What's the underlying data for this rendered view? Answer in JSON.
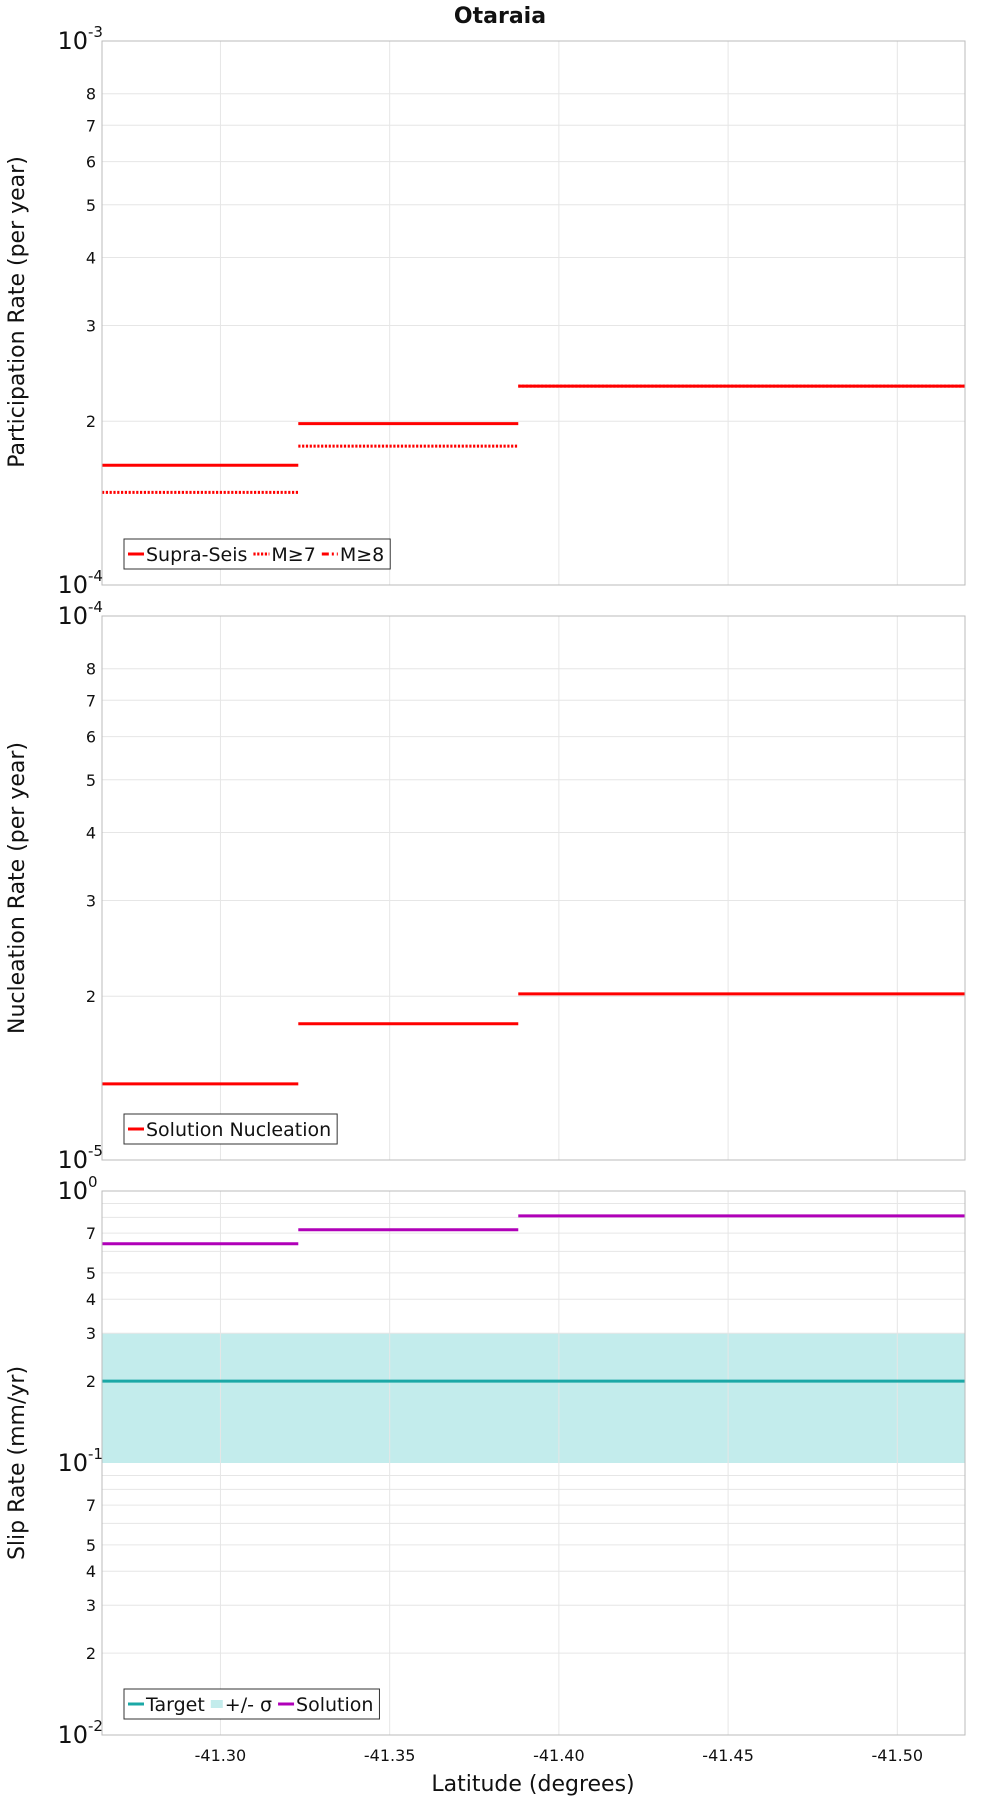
{
  "figure": {
    "title": "Otaraia",
    "xlabel": "Latitude (degrees)"
  },
  "chart_data": [
    {
      "type": "line",
      "ylabel": "Participation Rate (per year)",
      "yscale": "log",
      "ylim": [
        0.0001,
        0.001
      ],
      "xlim": [
        -41.265,
        -41.52
      ],
      "x_tick_values": [
        -41.3,
        -41.35,
        -41.4,
        -41.45,
        -41.5
      ],
      "x_tick_labels": [
        "",
        "",
        "",
        "",
        ""
      ],
      "grid": true,
      "legend_position": "bottom-left",
      "y_major_ticks": [
        {
          "value": 0.001,
          "base": "10",
          "exp": "-3"
        },
        {
          "value": 0.0001,
          "base": "10",
          "exp": "-4"
        }
      ],
      "y_minor_ticks": [
        {
          "value": 0.0002,
          "label": "2"
        },
        {
          "value": 0.0003,
          "label": "3"
        },
        {
          "value": 0.0004,
          "label": "4"
        },
        {
          "value": 0.0005,
          "label": "5"
        },
        {
          "value": 0.0006,
          "label": "6"
        },
        {
          "value": 0.0007,
          "label": "7"
        },
        {
          "value": 0.0008,
          "label": "8"
        }
      ],
      "series": [
        {
          "name": "Supra-Seis",
          "color": "#ff0000",
          "dash": "solid",
          "segments": [
            {
              "x0": -41.265,
              "x1": -41.323,
              "y": 0.000166
            },
            {
              "x0": -41.323,
              "x1": -41.388,
              "y": 0.000198
            },
            {
              "x0": -41.388,
              "x1": -41.52,
              "y": 0.000232
            }
          ]
        },
        {
          "name": "M≥7",
          "color": "#ff0000",
          "dash": "dotted",
          "segments": [
            {
              "x0": -41.265,
              "x1": -41.323,
              "y": 0.000148
            },
            {
              "x0": -41.323,
              "x1": -41.388,
              "y": 0.00018
            },
            {
              "x0": -41.388,
              "x1": -41.52,
              "y": 0.000232
            }
          ]
        },
        {
          "name": "M≥8",
          "color": "#ff0000",
          "dash": "dashdot",
          "segments": []
        }
      ]
    },
    {
      "type": "line",
      "ylabel": "Nucleation Rate (per year)",
      "yscale": "log",
      "ylim": [
        1e-05,
        0.0001
      ],
      "xlim": [
        -41.265,
        -41.52
      ],
      "x_tick_values": [
        -41.3,
        -41.35,
        -41.4,
        -41.45,
        -41.5
      ],
      "x_tick_labels": [
        "",
        "",
        "",
        "",
        ""
      ],
      "grid": true,
      "legend_position": "bottom-left",
      "y_major_ticks": [
        {
          "value": 0.0001,
          "base": "10",
          "exp": "-4"
        },
        {
          "value": 1e-05,
          "base": "10",
          "exp": "-5"
        }
      ],
      "y_minor_ticks": [
        {
          "value": 2e-05,
          "label": "2"
        },
        {
          "value": 3e-05,
          "label": "3"
        },
        {
          "value": 4e-05,
          "label": "4"
        },
        {
          "value": 5e-05,
          "label": "5"
        },
        {
          "value": 6e-05,
          "label": "6"
        },
        {
          "value": 7e-05,
          "label": "7"
        },
        {
          "value": 8e-05,
          "label": "8"
        }
      ],
      "series": [
        {
          "name": "Solution Nucleation",
          "color": "#ff0000",
          "dash": "solid",
          "segments": [
            {
              "x0": -41.265,
              "x1": -41.323,
              "y": 1.38e-05
            },
            {
              "x0": -41.323,
              "x1": -41.388,
              "y": 1.78e-05
            },
            {
              "x0": -41.388,
              "x1": -41.52,
              "y": 2.02e-05
            }
          ]
        }
      ]
    },
    {
      "type": "line",
      "ylabel": "Slip Rate (mm/yr)",
      "yscale": "log",
      "ylim": [
        0.01,
        1
      ],
      "xlim": [
        -41.265,
        -41.52
      ],
      "x_tick_values": [
        -41.3,
        -41.35,
        -41.4,
        -41.45,
        -41.5
      ],
      "x_tick_labels": [
        "-41.30",
        "-41.35",
        "-41.40",
        "-41.45",
        "-41.50"
      ],
      "grid": true,
      "legend_position": "bottom-left",
      "y_major_ticks": [
        {
          "value": 1,
          "base": "10",
          "exp": "0"
        },
        {
          "value": 0.1,
          "base": "10",
          "exp": "-1"
        },
        {
          "value": 0.01,
          "base": "10",
          "exp": "-2"
        }
      ],
      "y_minor_ticks": [
        {
          "value": 0.7,
          "label": "7"
        },
        {
          "value": 0.5,
          "label": "5"
        },
        {
          "value": 0.4,
          "label": "4"
        },
        {
          "value": 0.3,
          "label": "3"
        },
        {
          "value": 0.2,
          "label": "2"
        },
        {
          "value": 0.07,
          "label": "7"
        },
        {
          "value": 0.05,
          "label": "5"
        },
        {
          "value": 0.04,
          "label": "4"
        },
        {
          "value": 0.03,
          "label": "3"
        },
        {
          "value": 0.02,
          "label": "2"
        }
      ],
      "y_grid_values": [
        0.02,
        0.03,
        0.04,
        0.05,
        0.06,
        0.07,
        0.08,
        0.09,
        0.2,
        0.3,
        0.4,
        0.5,
        0.6,
        0.7,
        0.8,
        0.9
      ],
      "band": {
        "name": "+/- σ",
        "color": "#c3ecec",
        "x0": -41.265,
        "x1": -41.52,
        "y0": 0.1,
        "y1": 0.3
      },
      "series": [
        {
          "name": "Target",
          "color": "#1ba8a6",
          "dash": "solid",
          "segments": [
            {
              "x0": -41.265,
              "x1": -41.52,
              "y": 0.2
            }
          ]
        },
        {
          "name": "Solution",
          "color": "#b000b8",
          "dash": "solid",
          "segments": [
            {
              "x0": -41.265,
              "x1": -41.323,
              "y": 0.64
            },
            {
              "x0": -41.323,
              "x1": -41.388,
              "y": 0.72
            },
            {
              "x0": -41.388,
              "x1": -41.52,
              "y": 0.81
            }
          ]
        }
      ]
    }
  ]
}
